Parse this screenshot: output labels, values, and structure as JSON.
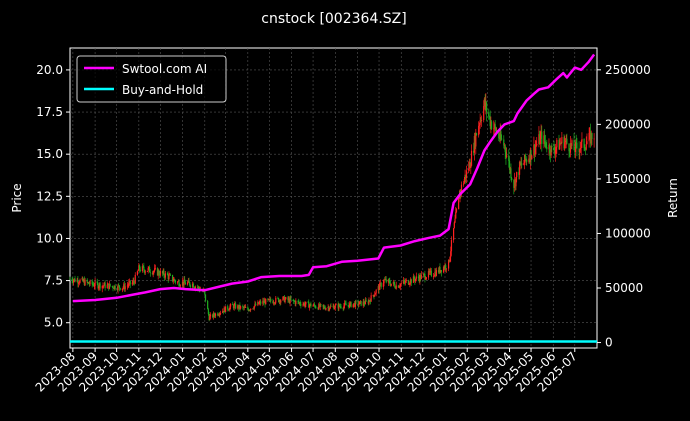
{
  "chart_data": {
    "type": "line",
    "title": "cnstock [002364.SZ]",
    "ylabel": "Price",
    "ylabel_right": "Return",
    "ylim": [
      3.5,
      21.3
    ],
    "ylim_right": [
      -5000,
      270000
    ],
    "yticks": [
      "5.0",
      "7.5",
      "10.0",
      "12.5",
      "15.0",
      "17.5",
      "20.0"
    ],
    "yticks_right": [
      "0",
      "50000",
      "100000",
      "150000",
      "200000",
      "250000"
    ],
    "x_ticks": [
      "2023-08",
      "2023-09",
      "2023-10",
      "2023-11",
      "2023-12",
      "2024-01",
      "2024-02",
      "2024-03",
      "2024-04",
      "2024-05",
      "2024-06",
      "2024-07",
      "2024-08",
      "2024-09",
      "2024-10",
      "2024-11",
      "2024-12",
      "2025-01",
      "2025-02",
      "2025-03",
      "2025-04",
      "2025-05",
      "2025-06",
      "2025-07"
    ],
    "grid": true,
    "legend_position": "top-left",
    "series": [
      {
        "name": "Swtool.com AI",
        "axis": "right",
        "color": "#ff00ff",
        "points": [
          [
            "2023-08-01",
            38000
          ],
          [
            "2023-09-01",
            39000
          ],
          [
            "2023-10-01",
            41000
          ],
          [
            "2023-10-25",
            44000
          ],
          [
            "2023-11-10",
            46000
          ],
          [
            "2023-12-01",
            49000
          ],
          [
            "2023-12-20",
            50000
          ],
          [
            "2024-01-05",
            49000
          ],
          [
            "2024-02-01",
            48000
          ],
          [
            "2024-02-20",
            51000
          ],
          [
            "2024-03-10",
            54000
          ],
          [
            "2024-04-01",
            56000
          ],
          [
            "2024-04-20",
            60000
          ],
          [
            "2024-05-15",
            61000
          ],
          [
            "2024-06-15",
            61000
          ],
          [
            "2024-06-25",
            62000
          ],
          [
            "2024-07-01",
            69000
          ],
          [
            "2024-07-20",
            70000
          ],
          [
            "2024-08-10",
            74000
          ],
          [
            "2024-09-01",
            75000
          ],
          [
            "2024-09-30",
            77000
          ],
          [
            "2024-10-08",
            87000
          ],
          [
            "2024-10-31",
            89000
          ],
          [
            "2024-11-20",
            93000
          ],
          [
            "2024-12-10",
            96000
          ],
          [
            "2024-12-25",
            98000
          ],
          [
            "2025-01-06",
            104000
          ],
          [
            "2025-01-13",
            128000
          ],
          [
            "2025-01-22",
            136000
          ],
          [
            "2025-02-05",
            145000
          ],
          [
            "2025-02-15",
            160000
          ],
          [
            "2025-02-25",
            176000
          ],
          [
            "2025-03-05",
            184000
          ],
          [
            "2025-03-15",
            193000
          ],
          [
            "2025-03-25",
            200000
          ],
          [
            "2025-04-07",
            203000
          ],
          [
            "2025-04-12",
            210000
          ],
          [
            "2025-04-25",
            222000
          ],
          [
            "2025-05-05",
            228000
          ],
          [
            "2025-05-12",
            232000
          ],
          [
            "2025-05-25",
            234000
          ],
          [
            "2025-06-05",
            241000
          ],
          [
            "2025-06-15",
            247000
          ],
          [
            "2025-06-20",
            243000
          ],
          [
            "2025-07-01",
            252000
          ],
          [
            "2025-07-10",
            250000
          ],
          [
            "2025-07-20",
            257000
          ],
          [
            "2025-07-28",
            264000
          ]
        ]
      },
      {
        "name": "Buy-and-Hold",
        "axis": "right",
        "color": "#00ffff",
        "points": [
          [
            "2023-07-28",
            1000
          ],
          [
            "2025-08-01",
            1000
          ]
        ]
      },
      {
        "name": "",
        "axis": "left",
        "type": "candlestick",
        "points": [
          [
            "2023-07-28",
            7.6
          ],
          [
            "2023-08-10",
            7.5
          ],
          [
            "2023-08-25",
            7.3
          ],
          [
            "2023-09-15",
            7.2
          ],
          [
            "2023-10-10",
            7.1
          ],
          [
            "2023-10-25",
            7.4
          ],
          [
            "2023-11-01",
            8.2
          ],
          [
            "2023-11-20",
            8.1
          ],
          [
            "2023-12-10",
            7.8
          ],
          [
            "2023-12-25",
            7.4
          ],
          [
            "2024-01-15",
            7.3
          ],
          [
            "2024-01-31",
            6.8
          ],
          [
            "2024-02-07",
            5.3
          ],
          [
            "2024-02-20",
            5.6
          ],
          [
            "2024-03-10",
            6.0
          ],
          [
            "2024-04-01",
            5.8
          ],
          [
            "2024-04-20",
            6.2
          ],
          [
            "2024-05-20",
            6.4
          ],
          [
            "2024-06-20",
            6.1
          ],
          [
            "2024-07-15",
            5.9
          ],
          [
            "2024-08-10",
            6.0
          ],
          [
            "2024-09-15",
            6.2
          ],
          [
            "2024-10-08",
            7.5
          ],
          [
            "2024-10-25",
            7.2
          ],
          [
            "2024-11-20",
            7.6
          ],
          [
            "2024-12-20",
            8.0
          ],
          [
            "2025-01-06",
            8.5
          ],
          [
            "2025-01-13",
            10.5
          ],
          [
            "2025-01-22",
            12.8
          ],
          [
            "2025-02-05",
            14.5
          ],
          [
            "2025-02-15",
            16.5
          ],
          [
            "2025-02-25",
            18.0
          ],
          [
            "2025-03-05",
            17.0
          ],
          [
            "2025-03-15",
            16.2
          ],
          [
            "2025-03-25",
            15.5
          ],
          [
            "2025-04-07",
            13.2
          ],
          [
            "2025-04-15",
            14.2
          ],
          [
            "2025-04-30",
            15.0
          ],
          [
            "2025-05-15",
            16.0
          ],
          [
            "2025-05-30",
            15.2
          ],
          [
            "2025-06-15",
            15.8
          ],
          [
            "2025-06-30",
            15.3
          ],
          [
            "2025-07-15",
            15.6
          ],
          [
            "2025-07-28",
            16.2
          ]
        ]
      }
    ]
  }
}
